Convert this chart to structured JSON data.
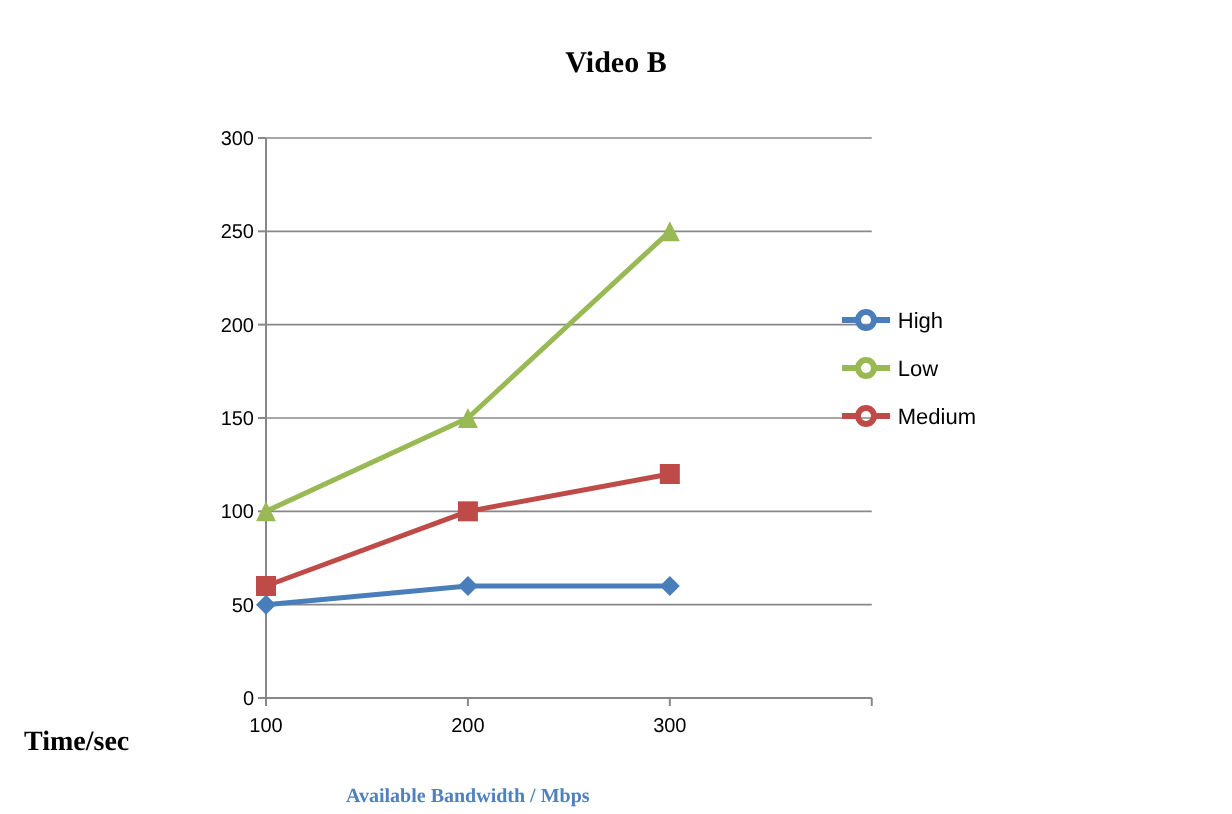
{
  "chart_data": {
    "type": "line",
    "title": "Video B",
    "xlabel": "Available Bandwidth / Mbps",
    "ylabel": "Time/sec",
    "categories": [
      "100",
      "200",
      "300",
      null
    ],
    "series": [
      {
        "name": "High",
        "color": "#4a7ebb",
        "marker": "diamond",
        "values": [
          50,
          60,
          60,
          null
        ]
      },
      {
        "name": "Medium",
        "color": "#be4b48",
        "marker": "square",
        "values": [
          60,
          100,
          120,
          null
        ]
      },
      {
        "name": "Low",
        "color": "#98b954",
        "marker": "triangle",
        "values": [
          100,
          150,
          250,
          null
        ]
      }
    ],
    "ylim": [
      0,
      300
    ],
    "yticks": [
      0,
      50,
      100,
      150,
      200,
      250,
      300
    ],
    "grid": "y",
    "legend": "right"
  }
}
